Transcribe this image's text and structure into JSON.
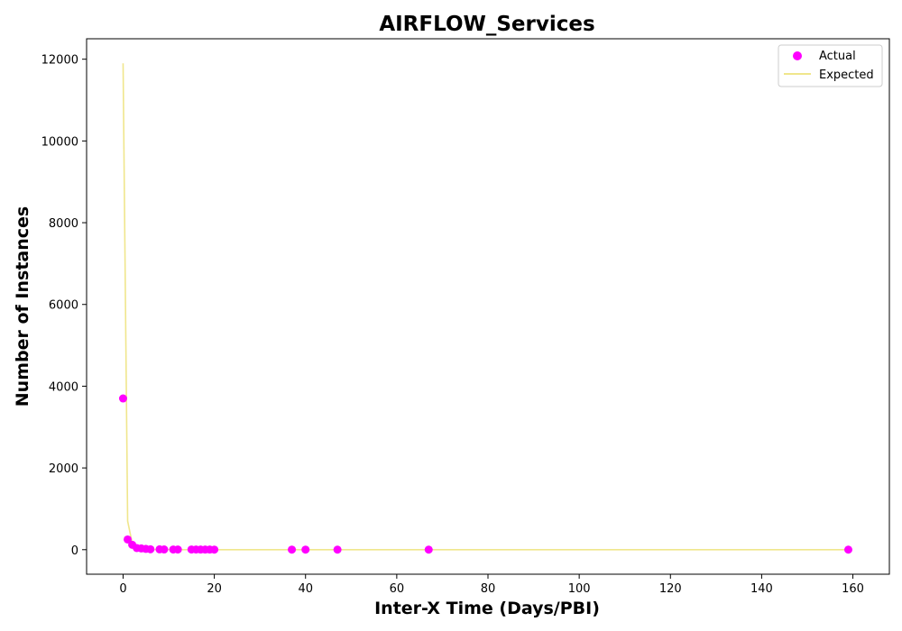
{
  "chart_data": {
    "type": "scatter",
    "title": "AIRFLOW_Services",
    "xlabel": "Inter-X Time (Days/PBI)",
    "ylabel": "Number of Instances",
    "xlim": [
      -8,
      168
    ],
    "ylim": [
      -600,
      12500
    ],
    "x_ticks": [
      0,
      20,
      40,
      60,
      80,
      100,
      120,
      140,
      160
    ],
    "y_ticks": [
      0,
      2000,
      4000,
      6000,
      8000,
      10000,
      12000
    ],
    "grid": false,
    "legend_position": "top-right",
    "legend": [
      "Actual",
      "Expected"
    ],
    "series": [
      {
        "name": "Actual",
        "kind": "scatter",
        "color": "#ff00ff",
        "x": [
          0,
          1,
          2,
          3,
          4,
          5,
          6,
          8,
          9,
          11,
          12,
          15,
          16,
          17,
          18,
          19,
          20,
          37,
          40,
          47,
          67,
          159
        ],
        "y": [
          3700,
          250,
          120,
          40,
          30,
          20,
          10,
          8,
          6,
          5,
          5,
          4,
          4,
          3,
          3,
          3,
          2,
          2,
          2,
          1,
          1,
          1
        ]
      },
      {
        "name": "Expected",
        "kind": "line",
        "color": "#f0e68c",
        "x": [
          0,
          1,
          2,
          3,
          4,
          5,
          6,
          8,
          10,
          15,
          20,
          40,
          60,
          80,
          100,
          120,
          140,
          159
        ],
        "y": [
          11900,
          700,
          160,
          60,
          30,
          15,
          8,
          3,
          1,
          0,
          0,
          0,
          0,
          0,
          0,
          0,
          0,
          0
        ]
      }
    ]
  }
}
